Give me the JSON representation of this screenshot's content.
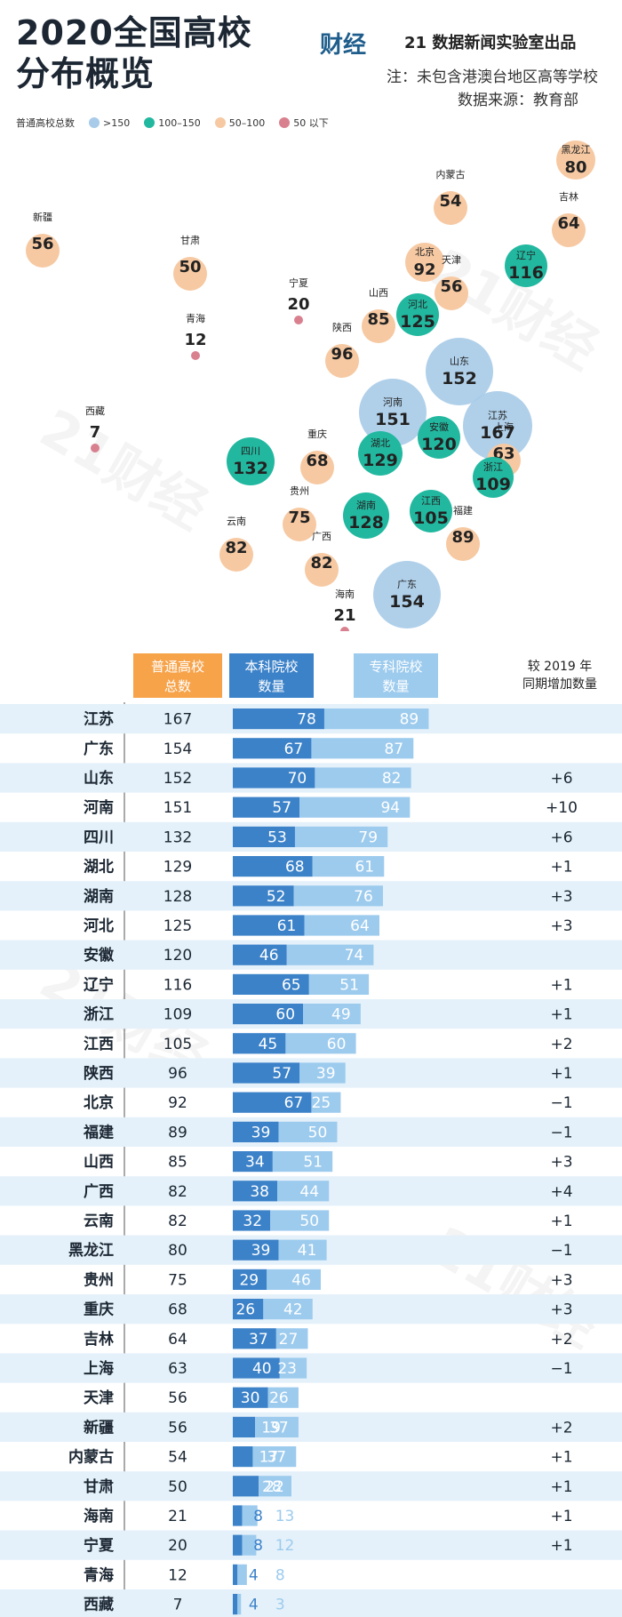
{
  "header": {
    "title_line1": "2020全国高校",
    "title_line2": "分布概览",
    "logo_text": "财经",
    "credit": "21 数据新闻实验室出品",
    "note": "注：未包含港澳台地区高等学校",
    "source": "数据来源：教育部"
  },
  "legend": {
    "label": "普通高校总数",
    "items": [
      {
        "label": ">150",
        "color": "#a7cbe8"
      },
      {
        "label": "100–150",
        "color": "#22b8a0"
      },
      {
        "label": "50–100",
        "color": "#f6c9a2"
      },
      {
        "label": "50 以下",
        "color": "#d9808f"
      }
    ]
  },
  "watermark": "21财经",
  "table_headers": {
    "total_1": "普通高校",
    "total_2": "总数",
    "bk_1": "本科院校",
    "bk_2": "数量",
    "zk_1": "专科院校",
    "zk_2": "数量",
    "inc_1": "较 2019 年",
    "inc_2": "同期增加数量"
  },
  "chart_data": {
    "type": "bar",
    "stacked": true,
    "categories": [
      "江苏",
      "广东",
      "山东",
      "河南",
      "四川",
      "湖北",
      "湖南",
      "河北",
      "安徽",
      "辽宁",
      "浙江",
      "江西",
      "陕西",
      "北京",
      "福建",
      "山西",
      "广西",
      "云南",
      "黑龙江",
      "贵州",
      "重庆",
      "吉林",
      "上海",
      "天津",
      "新疆",
      "内蒙古",
      "甘肃",
      "海南",
      "宁夏",
      "青海",
      "西藏"
    ],
    "totals": [
      167,
      154,
      152,
      151,
      132,
      129,
      128,
      125,
      120,
      116,
      109,
      105,
      96,
      92,
      89,
      85,
      82,
      82,
      80,
      75,
      68,
      64,
      63,
      56,
      56,
      54,
      50,
      21,
      20,
      12,
      7
    ],
    "series": [
      {
        "name": "本科院校数量",
        "color": "#3c82c9",
        "values": [
          78,
          67,
          70,
          57,
          53,
          68,
          52,
          61,
          46,
          65,
          60,
          45,
          57,
          67,
          39,
          34,
          38,
          32,
          39,
          29,
          26,
          37,
          40,
          30,
          19,
          17,
          22,
          8,
          8,
          4,
          4
        ]
      },
      {
        "name": "专科院校数量",
        "color": "#9dcbee",
        "values": [
          89,
          87,
          82,
          94,
          79,
          61,
          76,
          64,
          74,
          51,
          49,
          60,
          39,
          25,
          50,
          51,
          44,
          50,
          41,
          46,
          42,
          27,
          23,
          26,
          37,
          37,
          28,
          13,
          12,
          8,
          3
        ]
      }
    ],
    "increase": [
      "",
      "",
      "+6",
      "+10",
      "+6",
      "+1",
      "+3",
      "+3",
      "",
      "+1",
      "+1",
      "+2",
      "+1",
      "−1",
      "−1",
      "+3",
      "+4",
      "+1",
      "−1",
      "+3",
      "+3",
      "+2",
      "−1",
      "",
      "+2",
      "+1",
      "+1",
      "+1",
      "+1",
      "",
      ""
    ],
    "xlim": [
      0,
      170
    ]
  },
  "map_data": [
    {
      "name": "黑龙江",
      "value": 80,
      "tier": "c"
    },
    {
      "name": "吉林",
      "value": 64,
      "tier": "c"
    },
    {
      "name": "内蒙古",
      "value": 54,
      "tier": "c"
    },
    {
      "name": "新疆",
      "value": 56,
      "tier": "c"
    },
    {
      "name": "甘肃",
      "value": 50,
      "tier": "c"
    },
    {
      "name": "北京",
      "value": 92,
      "tier": "c"
    },
    {
      "name": "辽宁",
      "value": 116,
      "tier": "b"
    },
    {
      "name": "天津",
      "value": 56,
      "tier": "c"
    },
    {
      "name": "宁夏",
      "value": 20,
      "tier": "d"
    },
    {
      "name": "山西",
      "value": 85,
      "tier": "c"
    },
    {
      "name": "河北",
      "value": 125,
      "tier": "b"
    },
    {
      "name": "青海",
      "value": 12,
      "tier": "d"
    },
    {
      "name": "陕西",
      "value": 96,
      "tier": "c"
    },
    {
      "name": "山东",
      "value": 152,
      "tier": "a"
    },
    {
      "name": "河南",
      "value": 151,
      "tier": "a"
    },
    {
      "name": "江苏",
      "value": 167,
      "tier": "a"
    },
    {
      "name": "西藏",
      "value": 7,
      "tier": "d"
    },
    {
      "name": "安徽",
      "value": 120,
      "tier": "b"
    },
    {
      "name": "湖北",
      "value": 129,
      "tier": "b"
    },
    {
      "name": "上海",
      "value": 63,
      "tier": "c"
    },
    {
      "name": "四川",
      "value": 132,
      "tier": "b"
    },
    {
      "name": "重庆",
      "value": 68,
      "tier": "c"
    },
    {
      "name": "浙江",
      "value": 109,
      "tier": "b"
    },
    {
      "name": "贵州",
      "value": 75,
      "tier": "c"
    },
    {
      "name": "江西",
      "value": 105,
      "tier": "b"
    },
    {
      "name": "湖南",
      "value": 128,
      "tier": "b"
    },
    {
      "name": "福建",
      "value": 89,
      "tier": "c"
    },
    {
      "name": "云南",
      "value": 82,
      "tier": "c"
    },
    {
      "name": "广西",
      "value": 82,
      "tier": "c"
    },
    {
      "name": "广东",
      "value": 154,
      "tier": "a"
    },
    {
      "name": "海南",
      "value": 21,
      "tier": "d"
    }
  ]
}
